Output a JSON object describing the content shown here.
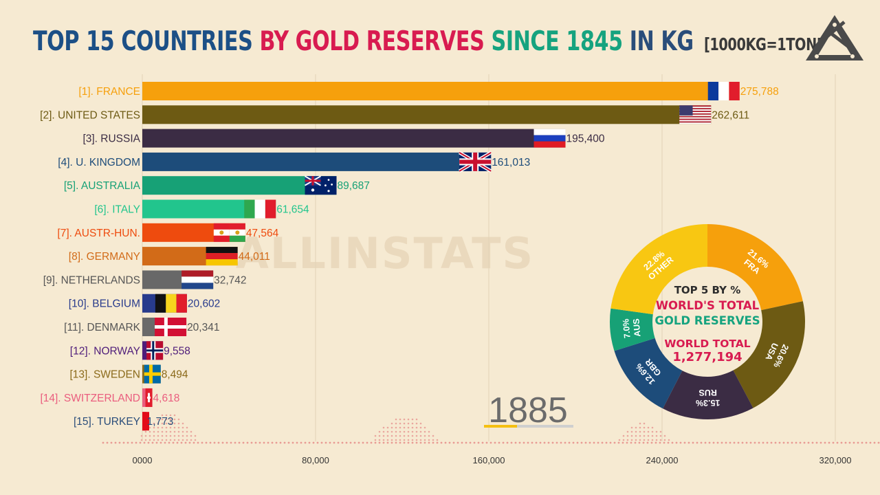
{
  "title": {
    "part1": "TOP 15 COUNTRIES",
    "part2": "BY GOLD RESERVES",
    "part3": "SINCE 1845",
    "part4": "IN KG",
    "part5": "[1000KG=1TONNE]",
    "colors": [
      "#1c4f86",
      "#d81b50",
      "#16a37f",
      "#2a4d7a"
    ]
  },
  "year": "1885",
  "watermark": "ALLINSTATS",
  "chart_data": {
    "type": "bar",
    "orientation": "horizontal",
    "xlim": [
      0,
      320000
    ],
    "xticks": [
      0,
      80000,
      160000,
      240000,
      320000
    ],
    "xtick_labels": [
      "0000",
      "80,000",
      "160,000",
      "240,000",
      "320,000"
    ],
    "grid": true,
    "categories": [
      "[1]. FRANCE",
      "[2]. UNITED STATES",
      "[3]. RUSSIA",
      "[4]. U. KINGDOM",
      "[5]. AUSTRALIA",
      "[6]. ITALY",
      "[7]. AUSTR-HUN.",
      "[8]. GERMANY",
      "[9]. NETHERLANDS",
      "[10]. BELGIUM",
      "[11]. DENMARK",
      "[12]. NORWAY",
      "[13]. SWEDEN",
      "[14]. SWITZERLAND",
      "[15]. TURKEY"
    ],
    "values": [
      275788,
      262611,
      195400,
      161013,
      89687,
      61654,
      47564,
      44011,
      32742,
      20602,
      20341,
      9558,
      8494,
      4618,
      1773
    ],
    "value_labels": [
      "275,788",
      "262,611",
      "195,400",
      "161,013",
      "89,687",
      "61,654",
      "47,564",
      "44,011",
      "32,742",
      "20,602",
      "20,341",
      "9,558",
      "8,494",
      "4,618",
      "1,773"
    ],
    "bar_colors": [
      "#f6a00c",
      "#6d5a13",
      "#3b2c44",
      "#1d4c7a",
      "#17a176",
      "#22c58d",
      "#ee4b0e",
      "#d26b18",
      "#686868",
      "#283b8c",
      "#6a6a6a",
      "#4e1c7a",
      "#8b6a1a",
      "#ea5d7e",
      "#a01020"
    ],
    "label_colors": [
      "#f6a00c",
      "#6d5a13",
      "#3b2c44",
      "#1d4c7a",
      "#17a176",
      "#22c58d",
      "#ee4b0e",
      "#d26b18",
      "#555555",
      "#283b8c",
      "#555555",
      "#4e1c7a",
      "#8b6a1a",
      "#ea5d7e",
      "#2a4d7a"
    ],
    "donut": {
      "type": "pie",
      "title_lines": [
        "TOP 5 BY %",
        "WORLD'S TOTAL",
        "GOLD RESERVES"
      ],
      "title_colors": [
        "#2c2c2c",
        "#d81b50",
        "#16a37f"
      ],
      "total_label": "WORLD TOTAL",
      "total_value": "1,277,194",
      "total_color": "#d81b50",
      "slices": [
        {
          "label": "FRA",
          "pct_text": "21.6%",
          "value": 21.6,
          "color": "#f6a00c"
        },
        {
          "label": "USA",
          "pct_text": "20.6%",
          "value": 20.6,
          "color": "#6d5a13"
        },
        {
          "label": "RUS",
          "pct_text": "15.3%",
          "value": 15.3,
          "color": "#3b2c44"
        },
        {
          "label": "GBR",
          "pct_text": "12.6%",
          "value": 12.6,
          "color": "#1d4c7a"
        },
        {
          "label": "AUS",
          "pct_text": "7.0%",
          "value": 7.0,
          "color": "#17a176"
        },
        {
          "label": "OTHER",
          "pct_text": "22.8%",
          "value": 22.8,
          "color": "#f8c712"
        }
      ]
    },
    "flags": [
      "france-flag",
      "usa-flag",
      "russia-flag",
      "uk-flag",
      "australia-flag",
      "italy-flag",
      "austria-hungary-flag",
      "germany-flag",
      "netherlands-flag",
      "belgium-flag",
      "denmark-flag",
      "norway-flag",
      "sweden-flag",
      "switzerland-flag",
      "turkey-flag"
    ]
  }
}
